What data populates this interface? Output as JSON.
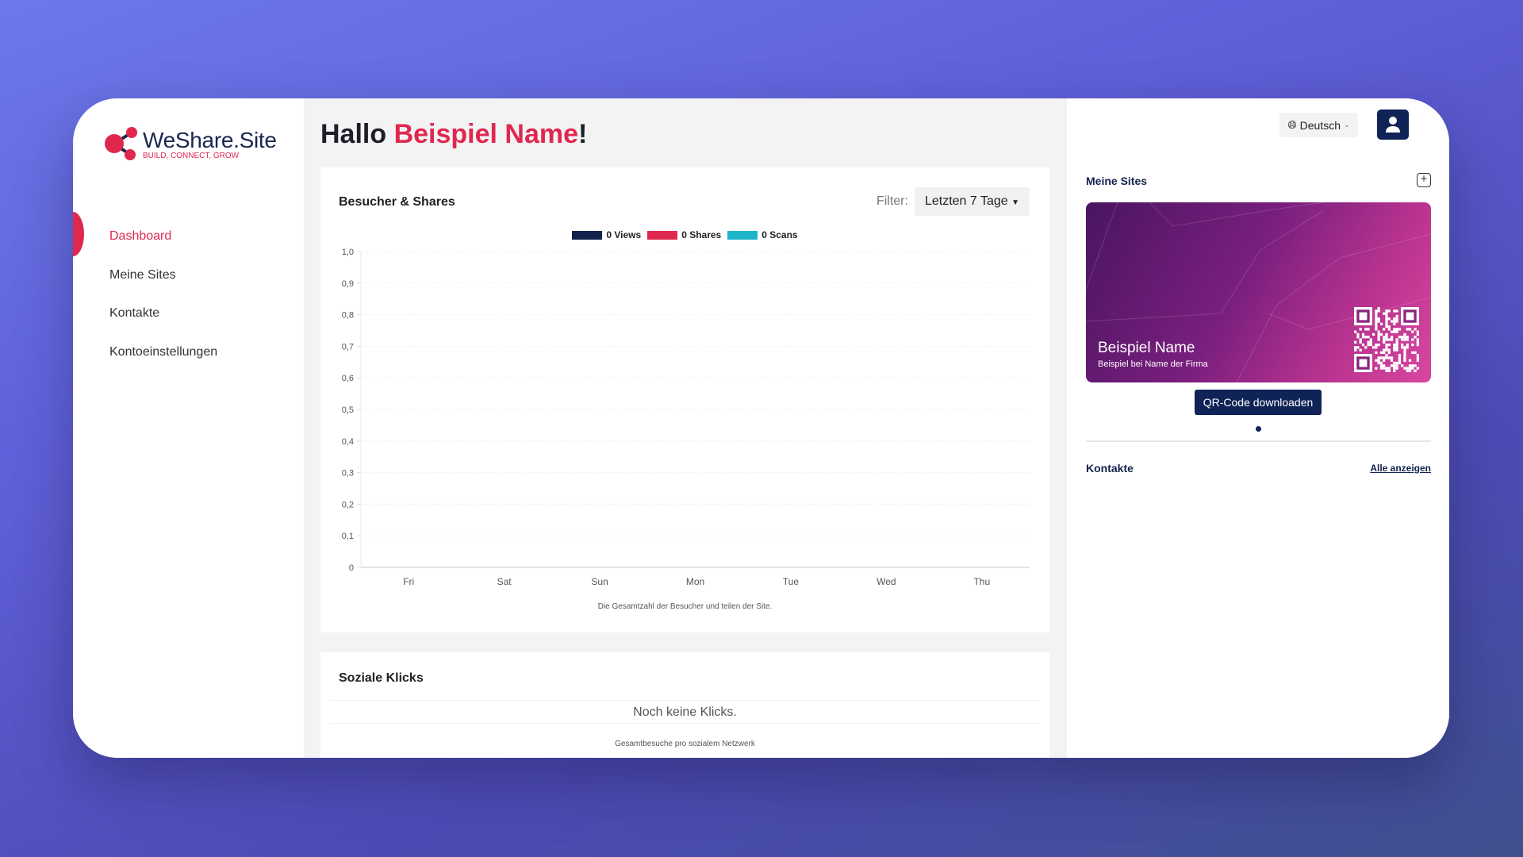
{
  "brand": {
    "name": "WeShare.Site",
    "tagline": "BUILD, CONNECT, GROW",
    "accent": "#e0284f",
    "primary": "#0f2356"
  },
  "sidebar": {
    "items": [
      {
        "label": "Dashboard",
        "active": true
      },
      {
        "label": "Meine Sites"
      },
      {
        "label": "Kontakte"
      },
      {
        "label": "Kontoeinstellungen"
      }
    ]
  },
  "header": {
    "greeting": "Hallo ",
    "user_name": "Beispiel Name",
    "exclaim": "!"
  },
  "visitors_card": {
    "title": "Besucher & Shares",
    "filter_label": "Filter:",
    "filter_value": "Letzten 7 Tage",
    "caption": "Die Gesamtzahl der Besucher und teilen der Site."
  },
  "chart_data": {
    "type": "line",
    "categories": [
      "Fri",
      "Sat",
      "Sun",
      "Mon",
      "Tue",
      "Wed",
      "Thu"
    ],
    "series": [
      {
        "name": "0 Views",
        "color": "#13224c",
        "values": [
          0,
          0,
          0,
          0,
          0,
          0,
          0
        ]
      },
      {
        "name": "0 Shares",
        "color": "#e0284f",
        "values": [
          0,
          0,
          0,
          0,
          0,
          0,
          0
        ]
      },
      {
        "name": "0 Scans",
        "color": "#1fb5c8",
        "values": [
          0,
          0,
          0,
          0,
          0,
          0,
          0
        ]
      }
    ],
    "yticks": [
      "0",
      "0,1",
      "0,2",
      "0,3",
      "0,4",
      "0,5",
      "0,6",
      "0,7",
      "0,8",
      "0,9",
      "1,0"
    ],
    "ylim": [
      0,
      1
    ],
    "grid": true,
    "legend": "top"
  },
  "social_card": {
    "title": "Soziale Klicks",
    "empty": "Noch keine Klicks.",
    "caption": "Gesamtbesuche pro sozialem Netzwerk"
  },
  "right": {
    "language": "Deutsch",
    "sites_title": "Meine Sites",
    "site": {
      "name": "Beispiel Name",
      "subtitle": "Beispiel bei Name der Firma"
    },
    "qr_button": "QR-Code downloaden",
    "contacts_title": "Kontakte",
    "show_all": "Alle anzeigen"
  }
}
